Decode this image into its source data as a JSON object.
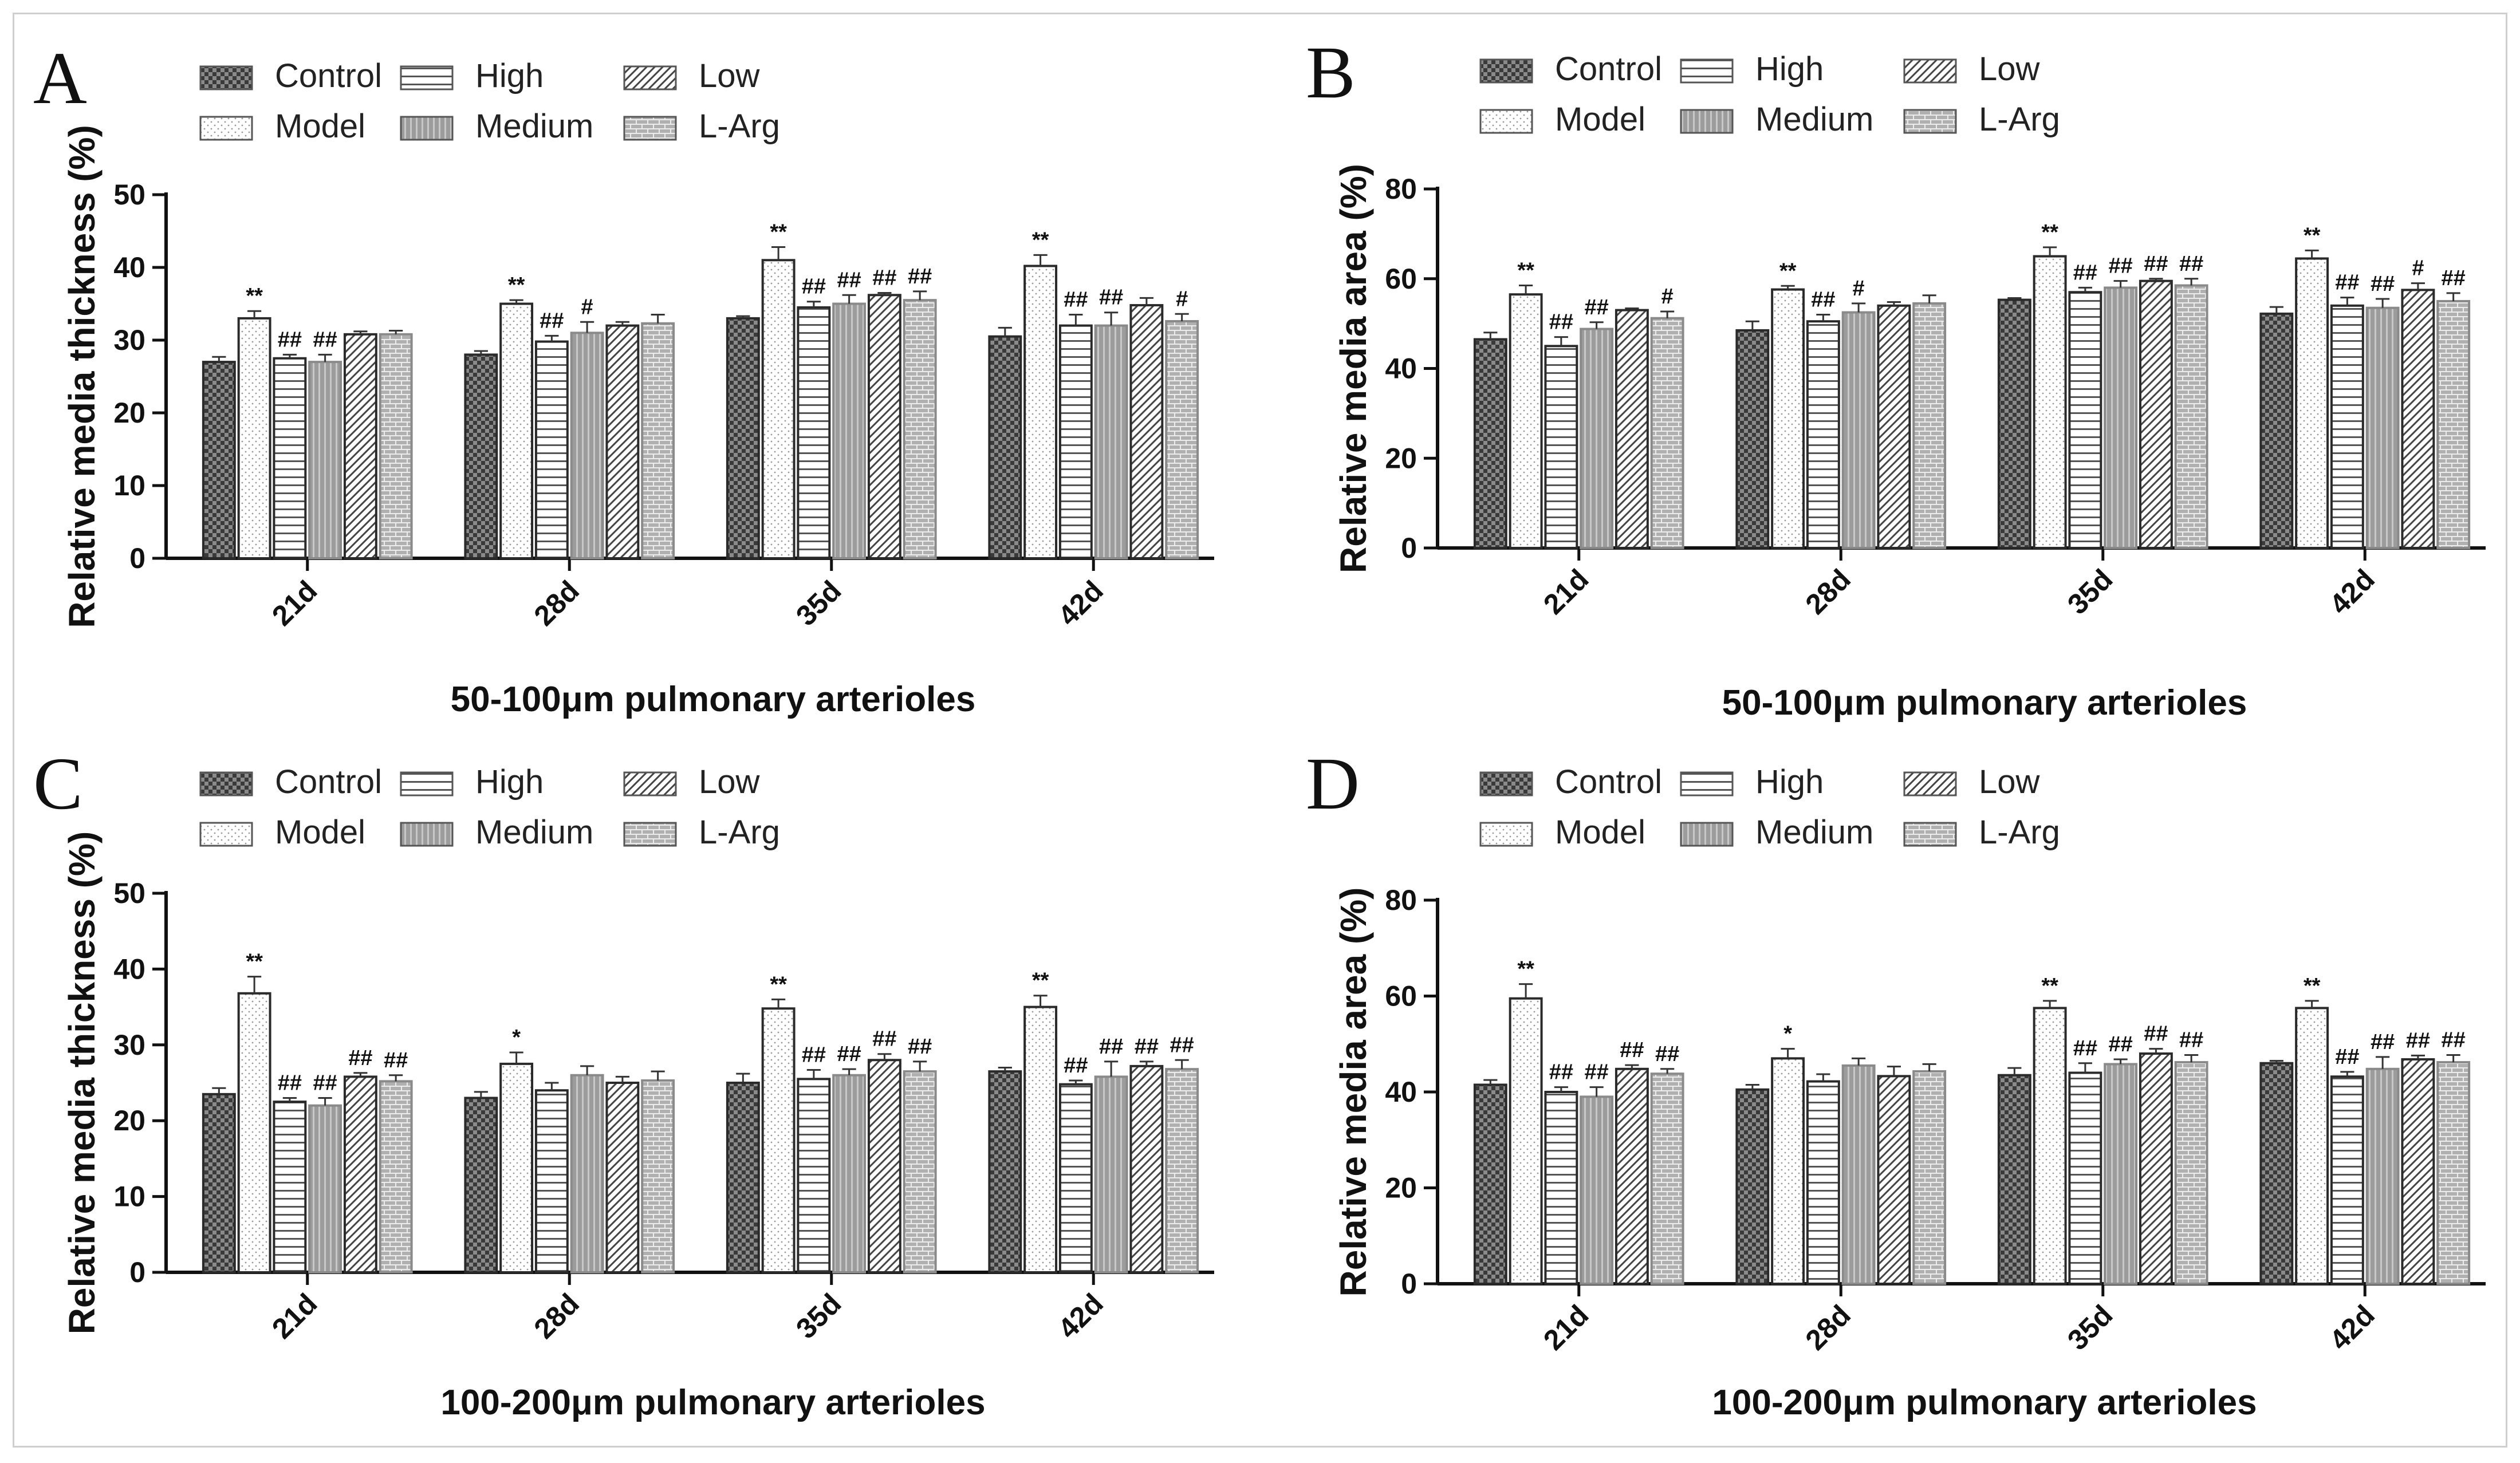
{
  "groups": [
    {
      "name": "Control",
      "fill": "control"
    },
    {
      "name": "Model",
      "fill": "model"
    },
    {
      "name": "High",
      "fill": "high"
    },
    {
      "name": "Medium",
      "fill": "medium"
    },
    {
      "name": "Low",
      "fill": "low"
    },
    {
      "name": "L-Arg",
      "fill": "larg"
    }
  ],
  "chart_data": [
    {
      "panel": "A",
      "type": "bar",
      "title": "",
      "xlabel": "50-100μm pulmonary arterioles",
      "ylabel": "Relative media thickness (%)",
      "ylim": [
        0,
        50
      ],
      "yticks": [
        0,
        10,
        20,
        30,
        40,
        50
      ],
      "categories": [
        "21d",
        "28d",
        "35d",
        "42d"
      ],
      "series": [
        {
          "name": "Control",
          "values": [
            27,
            28,
            33,
            30.5
          ],
          "errors": [
            0.7,
            0.5,
            0.3,
            1.2
          ],
          "sig": [
            "",
            "",
            "",
            ""
          ]
        },
        {
          "name": "Model",
          "values": [
            33,
            35,
            41,
            40.2
          ],
          "errors": [
            1.0,
            0.5,
            1.8,
            1.5
          ],
          "sig": [
            "**",
            "**",
            "**",
            "**"
          ]
        },
        {
          "name": "High",
          "values": [
            27.5,
            29.8,
            34.5,
            32
          ],
          "errors": [
            0.5,
            0.8,
            0.8,
            1.5
          ],
          "sig": [
            "##",
            "##",
            "##",
            "##"
          ]
        },
        {
          "name": "Medium",
          "values": [
            27,
            31,
            35,
            32
          ],
          "errors": [
            1.0,
            1.5,
            1.2,
            1.8
          ],
          "sig": [
            "##",
            "#",
            "##",
            "##"
          ]
        },
        {
          "name": "Low",
          "values": [
            30.8,
            32,
            36.2,
            34.8
          ],
          "errors": [
            0.4,
            0.5,
            0.3,
            1.0
          ],
          "sig": [
            "",
            "",
            "##",
            ""
          ]
        },
        {
          "name": "L-Arg",
          "values": [
            30.8,
            32.3,
            35.5,
            32.6
          ],
          "errors": [
            0.5,
            1.2,
            1.2,
            1.0
          ],
          "sig": [
            "",
            "",
            "##",
            "#"
          ]
        }
      ]
    },
    {
      "panel": "B",
      "type": "bar",
      "title": "",
      "xlabel": "50-100μm pulmonary arterioles",
      "ylabel": "Relative media area (%)",
      "ylim": [
        0,
        80
      ],
      "yticks": [
        0,
        20,
        40,
        60,
        80
      ],
      "categories": [
        "21d",
        "28d",
        "35d",
        "42d"
      ],
      "series": [
        {
          "name": "Control",
          "values": [
            46.5,
            48.5,
            55.3,
            52.2
          ],
          "errors": [
            1.5,
            2.0,
            0.4,
            1.5
          ],
          "sig": [
            "",
            "",
            "",
            ""
          ]
        },
        {
          "name": "Model",
          "values": [
            56.5,
            57.6,
            65,
            64.5
          ],
          "errors": [
            2.0,
            0.8,
            2.0,
            1.8
          ],
          "sig": [
            "**",
            "**",
            "**",
            "**"
          ]
        },
        {
          "name": "High",
          "values": [
            45,
            50.5,
            57,
            54
          ],
          "errors": [
            2.0,
            1.5,
            1.0,
            1.8
          ],
          "sig": [
            "##",
            "##",
            "##",
            "##"
          ]
        },
        {
          "name": "Medium",
          "values": [
            48.8,
            52.5,
            58,
            53.5
          ],
          "errors": [
            1.5,
            2.0,
            1.5,
            2.0
          ],
          "sig": [
            "##",
            "#",
            "##",
            "##"
          ]
        },
        {
          "name": "Low",
          "values": [
            53,
            54,
            59.5,
            57.5
          ],
          "errors": [
            0.4,
            0.8,
            0.5,
            1.5
          ],
          "sig": [
            "",
            "",
            "##",
            "#"
          ]
        },
        {
          "name": "L-Arg",
          "values": [
            51.2,
            54.5,
            58.5,
            55
          ],
          "errors": [
            1.5,
            1.8,
            1.5,
            1.8
          ],
          "sig": [
            "#",
            "",
            "##",
            "##"
          ]
        }
      ]
    },
    {
      "panel": "C",
      "type": "bar",
      "title": "",
      "xlabel": "100-200μm pulmonary arterioles",
      "ylabel": "Relative media thickness (%)",
      "ylim": [
        0,
        50
      ],
      "yticks": [
        0,
        10,
        20,
        30,
        40,
        50
      ],
      "categories": [
        "21d",
        "28d",
        "35d",
        "42d"
      ],
      "series": [
        {
          "name": "Control",
          "values": [
            23.5,
            23,
            25,
            26.5
          ],
          "errors": [
            0.8,
            0.8,
            1.2,
            0.5
          ],
          "sig": [
            "",
            "",
            "",
            ""
          ]
        },
        {
          "name": "Model",
          "values": [
            36.8,
            27.5,
            34.8,
            35
          ],
          "errors": [
            2.2,
            1.5,
            1.2,
            1.5
          ],
          "sig": [
            "**",
            "*",
            "**",
            "**"
          ]
        },
        {
          "name": "High",
          "values": [
            22.5,
            24,
            25.5,
            24.8
          ],
          "errors": [
            0.5,
            1.0,
            1.2,
            0.5
          ],
          "sig": [
            "##",
            "",
            "##",
            "##"
          ]
        },
        {
          "name": "Medium",
          "values": [
            22,
            26,
            26,
            25.8
          ],
          "errors": [
            1.0,
            1.2,
            0.8,
            2.0
          ],
          "sig": [
            "##",
            "",
            "##",
            "##"
          ]
        },
        {
          "name": "Low",
          "values": [
            25.8,
            25,
            28,
            27.2
          ],
          "errors": [
            0.5,
            0.8,
            0.8,
            0.6
          ],
          "sig": [
            "##",
            "",
            "##",
            "##"
          ]
        },
        {
          "name": "L-Arg",
          "values": [
            25.2,
            25.3,
            26.5,
            26.8
          ],
          "errors": [
            0.8,
            1.2,
            1.3,
            1.2
          ],
          "sig": [
            "##",
            "",
            "##",
            "##"
          ]
        }
      ]
    },
    {
      "panel": "D",
      "type": "bar",
      "title": "",
      "xlabel": "100-200μm pulmonary arterioles",
      "ylabel": "Relative media area (%)",
      "ylim": [
        0,
        80
      ],
      "yticks": [
        0,
        20,
        40,
        60,
        80
      ],
      "categories": [
        "21d",
        "28d",
        "35d",
        "42d"
      ],
      "series": [
        {
          "name": "Control",
          "values": [
            41.5,
            40.5,
            43.5,
            46
          ],
          "errors": [
            1.0,
            1.0,
            1.5,
            0.5
          ],
          "sig": [
            "",
            "",
            "",
            ""
          ]
        },
        {
          "name": "Model",
          "values": [
            59.5,
            47,
            57.5,
            57.5
          ],
          "errors": [
            3.0,
            2.0,
            1.5,
            1.5
          ],
          "sig": [
            "**",
            "*",
            "**",
            "**"
          ]
        },
        {
          "name": "High",
          "values": [
            40,
            42.2,
            44,
            43.2
          ],
          "errors": [
            1.0,
            1.5,
            2.0,
            1.0
          ],
          "sig": [
            "##",
            "",
            "##",
            "##"
          ]
        },
        {
          "name": "Medium",
          "values": [
            39,
            45.5,
            45.8,
            44.8
          ],
          "errors": [
            2.0,
            1.5,
            1.0,
            2.5
          ],
          "sig": [
            "##",
            "",
            "##",
            "##"
          ]
        },
        {
          "name": "Low",
          "values": [
            44.8,
            43.3,
            48,
            46.8
          ],
          "errors": [
            0.8,
            2.0,
            1.0,
            0.8
          ],
          "sig": [
            "##",
            "",
            "##",
            "##"
          ]
        },
        {
          "name": "L-Arg",
          "values": [
            43.8,
            44.3,
            46.2,
            46.2
          ],
          "errors": [
            1.0,
            1.5,
            1.5,
            1.5
          ],
          "sig": [
            "##",
            "",
            "##",
            "##"
          ]
        }
      ]
    }
  ]
}
